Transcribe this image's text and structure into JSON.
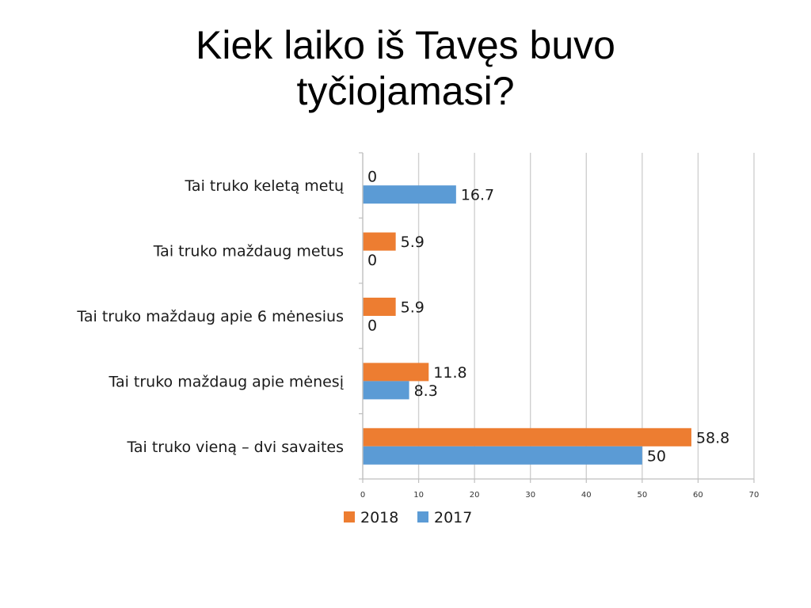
{
  "slide": {
    "title_line1": "Kiek laiko iš Tavęs buvo",
    "title_line2": "tyčiojamasi?"
  },
  "chart_data": {
    "type": "bar",
    "orientation": "horizontal",
    "categories": [
      "Tai truko keletą metų",
      "Tai truko maždaug metus",
      "Tai truko maždaug apie 6 mėnesius",
      "Tai truko maždaug apie mėnesį",
      "Tai truko vieną – dvi savaites"
    ],
    "series": [
      {
        "name": "2018",
        "color": "#ED7D31",
        "values": [
          0,
          5.9,
          5.9,
          11.8,
          58.8
        ],
        "labels": [
          "0",
          "5.9",
          "5.9",
          "11.8",
          "58.8"
        ]
      },
      {
        "name": "2017",
        "color": "#5B9BD5",
        "values": [
          16.7,
          0,
          0,
          8.3,
          50
        ],
        "labels": [
          "16.7",
          "0",
          "0",
          "8.3",
          "50"
        ]
      }
    ],
    "xlim": [
      0,
      70
    ],
    "ticks": [
      "0",
      "10",
      "20",
      "30",
      "40",
      "50",
      "60",
      "70"
    ],
    "grid": true,
    "legend_position": "bottom"
  }
}
